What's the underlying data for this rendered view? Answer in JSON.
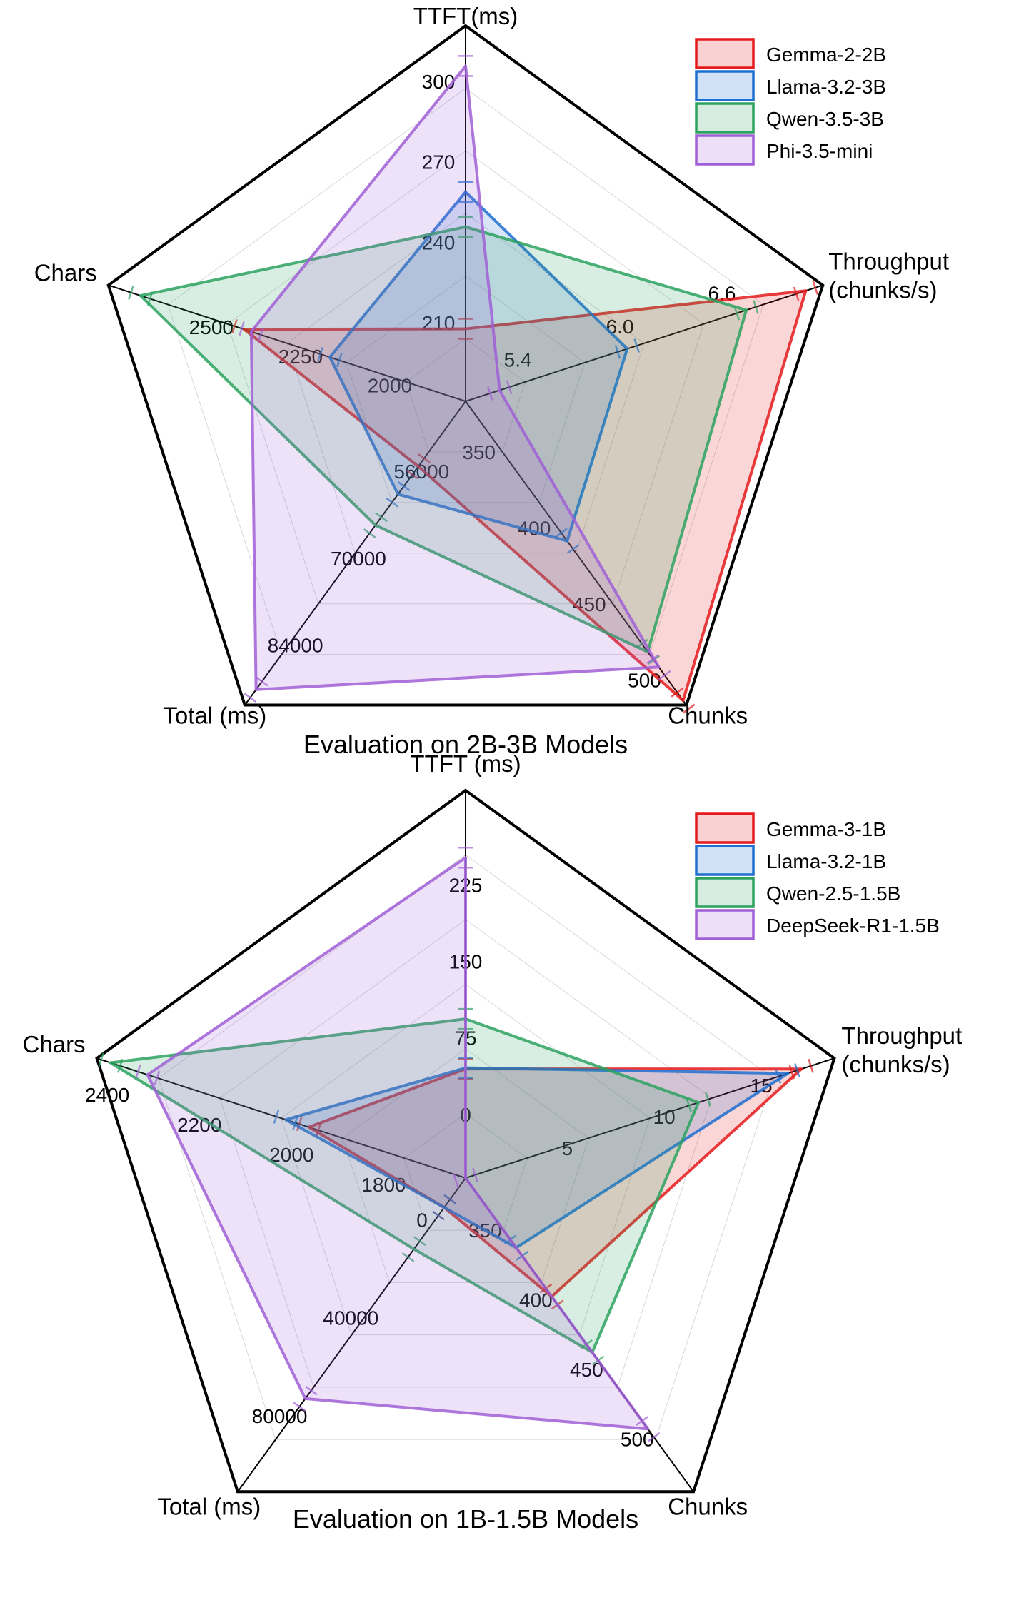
{
  "chart_data": [
    {
      "type": "radar",
      "title": "Evaluation on 2B-3B Models",
      "axes": [
        {
          "name": "TTFT(ms)",
          "name_lines": [
            "TTFT(ms)"
          ],
          "min": 185,
          "max": 325,
          "ticks": [
            210,
            240,
            270,
            300
          ],
          "tick_labels": [
            "210",
            "240",
            "270",
            "300"
          ]
        },
        {
          "name": "Throughput (chunks/s)",
          "name_lines": [
            "Throughput",
            "(chunks/s)"
          ],
          "min": 4.9,
          "max": 7.0,
          "ticks": [
            5.4,
            6.0,
            6.6
          ],
          "tick_labels": [
            "5.4",
            "6.0",
            "6.6"
          ]
        },
        {
          "name": "Chunks",
          "name_lines": [
            "Chunks"
          ],
          "min": 325,
          "max": 525,
          "ticks": [
            350,
            400,
            450,
            500
          ],
          "tick_labels": [
            "350",
            "400",
            "450",
            "500"
          ]
        },
        {
          "name": "Total (ms)",
          "name_lines": [
            "Total (ms)"
          ],
          "min": 44000,
          "max": 93000,
          "ticks": [
            56000,
            70000,
            84000
          ],
          "tick_labels": [
            "56000",
            "70000",
            "84000"
          ]
        },
        {
          "name": "Chars",
          "name_lines": [
            "Chars"
          ],
          "min": 1800,
          "max": 2800,
          "ticks": [
            2000,
            2250,
            2500
          ],
          "tick_labels": [
            "2000",
            "2250",
            "2500"
          ]
        }
      ],
      "series": [
        {
          "name": "Gemma-2-2B",
          "color": "#e41a1c",
          "values": [
            212,
            6.9,
            522,
            54500,
            2420
          ]
        },
        {
          "name": "Llama-3.2-3B",
          "color": "#1f6fd1",
          "values": [
            263,
            5.85,
            417,
            59000,
            2180
          ]
        },
        {
          "name": "Qwen-3.5-3B",
          "color": "#2ca25f",
          "values": [
            250,
            6.55,
            490,
            64000,
            2710
          ]
        },
        {
          "name": "Phi-3.5-mini",
          "color": "#a05fd6",
          "values": [
            310,
            5.1,
            500,
            90500,
            2400
          ]
        }
      ],
      "legend_position": "top-right",
      "grid": true
    },
    {
      "type": "radar",
      "title": "Evaluation on 1B-1.5B Models",
      "axes": [
        {
          "name": "TTFT (ms)",
          "name_lines": [
            "TTFT (ms)"
          ],
          "min": -40,
          "max": 340,
          "ticks": [
            0,
            75,
            150,
            225
          ],
          "tick_labels": [
            "0",
            "75",
            "150",
            "225"
          ]
        },
        {
          "name": "Throughput (chunks/s)",
          "name_lines": [
            "Throughput",
            "(chunks/s)"
          ],
          "min": -2,
          "max": 17,
          "ticks": [
            5,
            10,
            15
          ],
          "tick_labels": [
            "5",
            "10",
            "15"
          ]
        },
        {
          "name": "Chunks",
          "name_lines": [
            "Chunks"
          ],
          "min": 325,
          "max": 550,
          "ticks": [
            350,
            400,
            450,
            500
          ],
          "tick_labels": [
            "350",
            "400",
            "450",
            "500"
          ]
        },
        {
          "name": "Total (ms)",
          "name_lines": [
            "Total (ms)"
          ],
          "min": -10000,
          "max": 118000,
          "ticks": [
            0,
            40000,
            80000
          ],
          "tick_labels": [
            "0",
            "40000",
            "80000"
          ]
        },
        {
          "name": "Chars",
          "name_lines": [
            "Chars"
          ],
          "min": 1700,
          "max": 2500,
          "ticks": [
            1800,
            2000,
            2200,
            2400
          ],
          "tick_labels": [
            "1800",
            "2000",
            "2200",
            "2400"
          ]
        }
      ],
      "series": [
        {
          "name": "Gemma-3-1B",
          "color": "#e41a1c",
          "values": [
            67,
            15.3,
            410,
            2000,
            2040
          ]
        },
        {
          "name": "Llama-3.2-1B",
          "color": "#1f6fd1",
          "values": [
            68,
            14.6,
            375,
            2000,
            2090
          ]
        },
        {
          "name": "Qwen-2.5-1.5B",
          "color": "#2ca25f",
          "values": [
            116,
            10.0,
            450,
            19000,
            2470
          ]
        },
        {
          "name": "DeepSeek-R1-1.5B",
          "color": "#a05fd6",
          "values": [
            274,
            -2,
            505,
            80000,
            2390
          ]
        }
      ],
      "legend_position": "top-right",
      "grid": true
    }
  ]
}
